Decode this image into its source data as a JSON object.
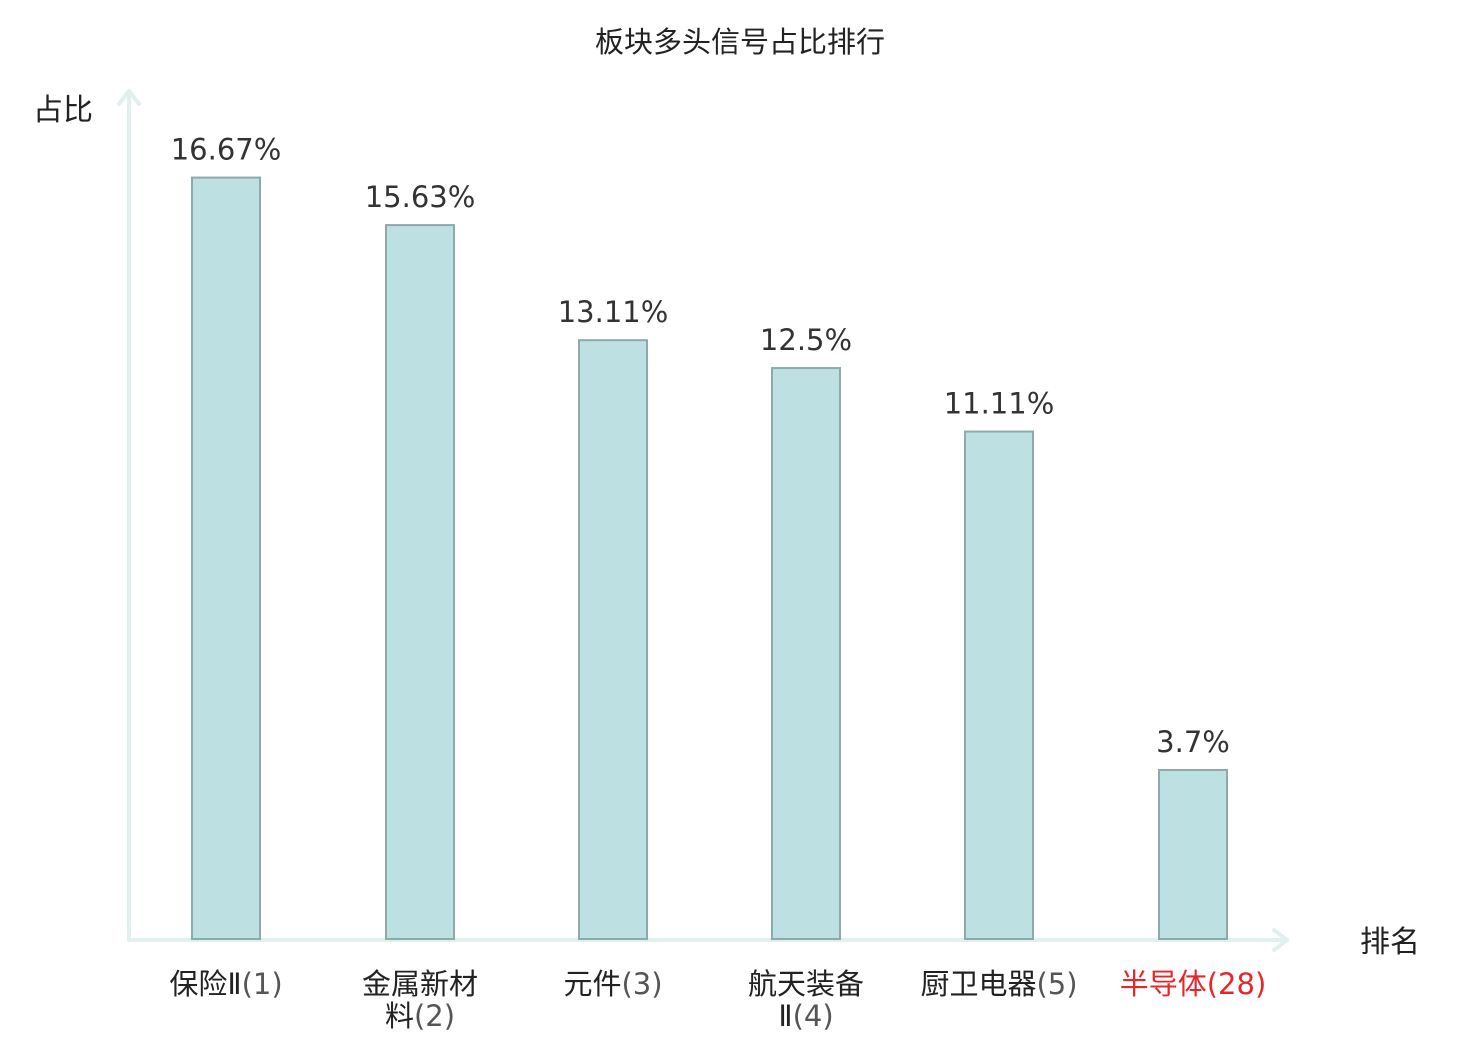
{
  "chart_data": {
    "type": "bar",
    "title": "板块多头信号占比排行",
    "xlabel": "排名",
    "ylabel": "占比",
    "categories": [
      {
        "name_lines": [
          "保险Ⅱ"
        ],
        "rank": "(1)",
        "rank_inline": true,
        "highlight": false
      },
      {
        "name_lines": [
          "金属新材",
          "料"
        ],
        "rank": "(2)",
        "rank_inline": true,
        "highlight": false
      },
      {
        "name_lines": [
          "元件"
        ],
        "rank": "(3)",
        "rank_inline": true,
        "highlight": false
      },
      {
        "name_lines": [
          "航天装备",
          "Ⅱ"
        ],
        "rank": "(4)",
        "rank_inline": true,
        "highlight": false
      },
      {
        "name_lines": [
          "厨卫电器"
        ],
        "rank": "(5)",
        "rank_inline": true,
        "highlight": false
      },
      {
        "name_lines": [
          "半导体"
        ],
        "rank": "(28)",
        "rank_inline": true,
        "highlight": true
      }
    ],
    "values": [
      16.67,
      15.63,
      13.11,
      12.5,
      11.11,
      3.7
    ],
    "value_labels": [
      "16.67%",
      "15.63%",
      "13.11%",
      "12.5%",
      "11.11%",
      "3.7%"
    ],
    "ylim": [
      0,
      18.5
    ],
    "grid": false,
    "colors": {
      "bar_fill": "#bde0e3",
      "bar_stroke": "#8fa9aa",
      "axis": "#dff0ee",
      "text": "#222222",
      "rank_text": "#555555",
      "label_text": "#333333",
      "highlight": "#e8262a"
    }
  }
}
